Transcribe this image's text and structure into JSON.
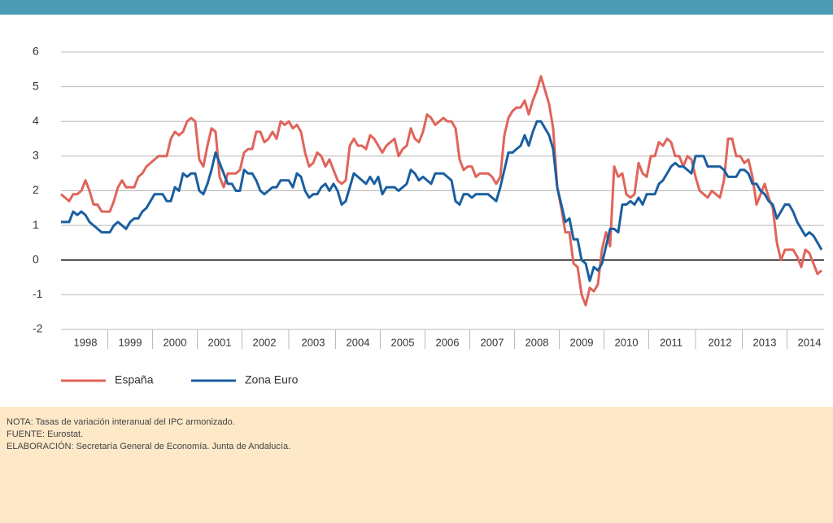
{
  "chart_data": {
    "type": "line",
    "categories": [
      null,
      null,
      null,
      null,
      null,
      null,
      "1998",
      null,
      null,
      null,
      null,
      null,
      null,
      null,
      null,
      null,
      null,
      "1999",
      null,
      null,
      null,
      null,
      null,
      null,
      null,
      null,
      null,
      null,
      "2000",
      null,
      null,
      null,
      null,
      null,
      null,
      null,
      null,
      null,
      null,
      "2001",
      null,
      null,
      null,
      null,
      null,
      null,
      null,
      null,
      null,
      null,
      "2002",
      null,
      null,
      null,
      null,
      null,
      null,
      null,
      null,
      null,
      null,
      null,
      "2003",
      null,
      null,
      null,
      null,
      null,
      null,
      null,
      null,
      null,
      null,
      "2004",
      null,
      null,
      null,
      null,
      null,
      null,
      null,
      null,
      null,
      null,
      "2005",
      null,
      null,
      null,
      null,
      null,
      null,
      null,
      null,
      null,
      null,
      "2006",
      null,
      null,
      null,
      null,
      null,
      null,
      null,
      null,
      null,
      null,
      "2007",
      null,
      null,
      null,
      null,
      null,
      null,
      null,
      null,
      null,
      null,
      "2008",
      null,
      null,
      null,
      null,
      null,
      null,
      null,
      null,
      null,
      null,
      "2009",
      null,
      null,
      null,
      null,
      null,
      null,
      null,
      null,
      null,
      null,
      "2010",
      null,
      null,
      null,
      null,
      null,
      null,
      null,
      null,
      null,
      null,
      "2011",
      null,
      null,
      null,
      null,
      null,
      null,
      null,
      null,
      null,
      null,
      null,
      "2012",
      null,
      null,
      null,
      null,
      null,
      null,
      null,
      null,
      null,
      null,
      "2013",
      null,
      null,
      null,
      null,
      null,
      null,
      null,
      null,
      null,
      null,
      "2014",
      null,
      null,
      null
    ],
    "series": [
      {
        "name": "España",
        "color": "#e0645a",
        "values": [
          1.9,
          1.8,
          1.7,
          1.9,
          1.9,
          2.0,
          2.3,
          2.0,
          1.6,
          1.6,
          1.4,
          1.4,
          1.4,
          1.7,
          2.1,
          2.3,
          2.1,
          2.1,
          2.1,
          2.4,
          2.5,
          2.7,
          2.8,
          2.9,
          3.0,
          3.0,
          3.0,
          3.5,
          3.7,
          3.6,
          3.7,
          4.0,
          4.1,
          4.0,
          2.9,
          2.7,
          3.3,
          3.8,
          3.7,
          2.4,
          2.1,
          2.5,
          2.5,
          2.5,
          2.6,
          3.1,
          3.2,
          3.2,
          3.7,
          3.7,
          3.4,
          3.5,
          3.7,
          3.5,
          4.0,
          3.9,
          4.0,
          3.8,
          3.9,
          3.7,
          3.1,
          2.7,
          2.8,
          3.1,
          3.0,
          2.7,
          2.9,
          2.6,
          2.3,
          2.2,
          2.3,
          3.3,
          3.5,
          3.3,
          3.3,
          3.2,
          3.6,
          3.5,
          3.3,
          3.1,
          3.3,
          3.4,
          3.5,
          3.0,
          3.2,
          3.3,
          3.8,
          3.5,
          3.4,
          3.7,
          4.2,
          4.1,
          3.9,
          4.0,
          4.1,
          4.0,
          4.0,
          3.8,
          2.9,
          2.6,
          2.7,
          2.7,
          2.4,
          2.5,
          2.5,
          2.5,
          2.4,
          2.2,
          2.4,
          3.6,
          4.1,
          4.3,
          4.4,
          4.4,
          4.6,
          4.2,
          4.6,
          4.9,
          5.3,
          4.9,
          4.5,
          3.8,
          2.1,
          1.5,
          0.8,
          0.8,
          -0.1,
          -0.2,
          -1.0,
          -1.3,
          -0.8,
          -0.9,
          -0.7,
          0.3,
          0.8,
          0.4,
          2.7,
          2.4,
          2.5,
          1.9,
          1.8,
          1.9,
          2.8,
          2.5,
          2.4,
          3.0,
          3.0,
          3.4,
          3.3,
          3.5,
          3.4,
          3.0,
          3.0,
          2.7,
          3.0,
          2.9,
          2.4,
          2.0,
          1.9,
          1.8,
          2.0,
          1.9,
          1.8,
          2.3,
          3.5,
          3.5,
          3.0,
          3.0,
          2.8,
          2.9,
          2.4,
          1.6,
          1.9,
          2.2,
          1.8,
          1.5,
          0.5,
          0.0,
          0.3,
          0.3,
          0.3,
          0.1,
          -0.2,
          0.3,
          0.2,
          -0.1,
          -0.4,
          -0.3
        ]
      },
      {
        "name": "Zona Euro",
        "color": "#1a5fa0",
        "values": [
          1.1,
          1.1,
          1.1,
          1.4,
          1.3,
          1.4,
          1.3,
          1.1,
          1.0,
          0.9,
          0.8,
          0.8,
          0.8,
          1.0,
          1.1,
          1.0,
          0.9,
          1.1,
          1.2,
          1.2,
          1.4,
          1.5,
          1.7,
          1.9,
          1.9,
          1.9,
          1.7,
          1.7,
          2.1,
          2.0,
          2.5,
          2.4,
          2.5,
          2.5,
          2.0,
          1.9,
          2.2,
          2.6,
          3.1,
          2.8,
          2.5,
          2.2,
          2.2,
          2.0,
          2.0,
          2.6,
          2.5,
          2.5,
          2.3,
          2.0,
          1.9,
          2.0,
          2.1,
          2.1,
          2.3,
          2.3,
          2.3,
          2.1,
          2.5,
          2.4,
          2.0,
          1.8,
          1.9,
          1.9,
          2.1,
          2.2,
          2.0,
          2.2,
          2.0,
          1.6,
          1.7,
          2.1,
          2.5,
          2.4,
          2.3,
          2.2,
          2.4,
          2.2,
          2.4,
          1.9,
          2.1,
          2.1,
          2.1,
          2.0,
          2.1,
          2.2,
          2.6,
          2.5,
          2.3,
          2.4,
          2.3,
          2.2,
          2.5,
          2.5,
          2.5,
          2.4,
          2.3,
          1.7,
          1.6,
          1.9,
          1.9,
          1.8,
          1.9,
          1.9,
          1.9,
          1.9,
          1.8,
          1.7,
          2.1,
          2.6,
          3.1,
          3.1,
          3.2,
          3.3,
          3.6,
          3.3,
          3.7,
          4.0,
          4.0,
          3.8,
          3.6,
          3.2,
          2.1,
          1.6,
          1.1,
          1.2,
          0.6,
          0.6,
          0.0,
          -0.1,
          -0.6,
          -0.2,
          -0.3,
          -0.1,
          0.4,
          0.9,
          0.9,
          0.8,
          1.6,
          1.6,
          1.7,
          1.6,
          1.8,
          1.6,
          1.9,
          1.9,
          1.9,
          2.2,
          2.3,
          2.5,
          2.7,
          2.8,
          2.7,
          2.7,
          2.6,
          2.5,
          3.0,
          3.0,
          3.0,
          2.7,
          2.7,
          2.7,
          2.7,
          2.6,
          2.4,
          2.4,
          2.4,
          2.6,
          2.6,
          2.5,
          2.2,
          2.2,
          2.0,
          1.9,
          1.7,
          1.6,
          1.2,
          1.4,
          1.6,
          1.6,
          1.4,
          1.1,
          0.9,
          0.7,
          0.8,
          0.7,
          0.5,
          0.3
        ]
      }
    ],
    "ylim": [
      -2,
      6
    ],
    "yticks": [
      -2,
      -1,
      0,
      1,
      2,
      3,
      4,
      5,
      6
    ],
    "grid": true,
    "notes": [
      "NOTA: Tasas de variación interanual del IPC armonizado.",
      "FUENTE: Eurostat.",
      "ELABORACIÓN: Secretaría General de Economía. Junta de Andalucía."
    ]
  }
}
